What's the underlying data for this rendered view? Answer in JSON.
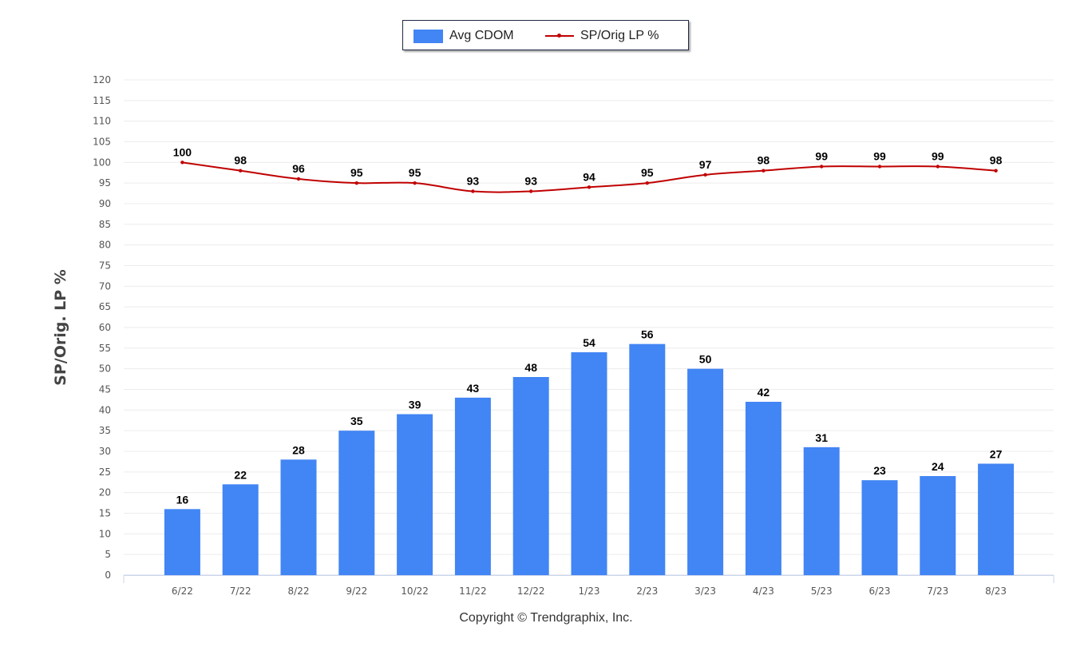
{
  "chart_data": {
    "type": "bar",
    "categories": [
      "6/22",
      "7/22",
      "8/22",
      "9/22",
      "10/22",
      "11/22",
      "12/22",
      "1/23",
      "2/23",
      "3/23",
      "4/23",
      "5/23",
      "6/23",
      "7/23",
      "8/23"
    ],
    "series": [
      {
        "name": "Avg CDOM",
        "type": "bar",
        "color": "#4285f4",
        "values": [
          16,
          22,
          28,
          35,
          39,
          43,
          48,
          54,
          56,
          50,
          42,
          31,
          23,
          24,
          27
        ]
      },
      {
        "name": "SP/Orig LP %",
        "type": "line",
        "color": "#c00000",
        "values": [
          100,
          98,
          96,
          95,
          95,
          93,
          93,
          94,
          95,
          97,
          98,
          99,
          99,
          99,
          98
        ]
      }
    ],
    "ylabel": "SP/Orig. LP %",
    "ylim": [
      0,
      120
    ],
    "yticks": [
      0,
      5,
      10,
      15,
      20,
      25,
      30,
      35,
      40,
      45,
      50,
      55,
      60,
      65,
      70,
      75,
      80,
      85,
      90,
      95,
      100,
      105,
      110,
      115,
      120
    ],
    "grid": true,
    "legend_position": "top-center",
    "data_labels": true
  },
  "footer": {
    "copyright": "Copyright © Trendgraphix, Inc."
  }
}
